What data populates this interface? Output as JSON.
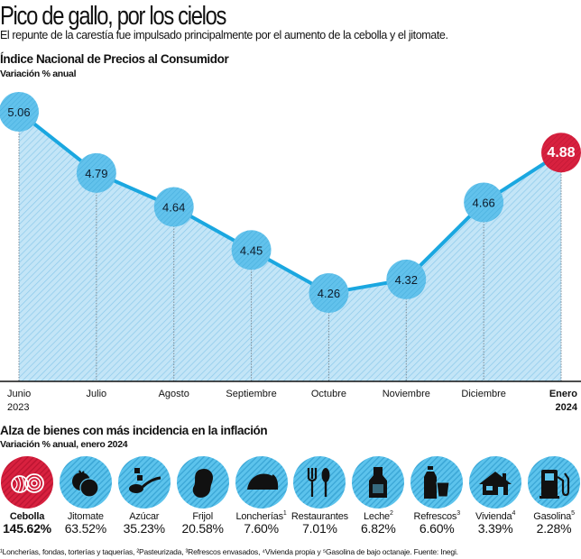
{
  "header": {
    "title": "Pico de gallo, por los cielos",
    "subtitle": "El repunte de la carestía fue impulsado principalmente por el aumento de la cebolla y el jitomate."
  },
  "chart_data": {
    "type": "area",
    "title": "Índice Nacional de Precios al Consumidor",
    "subtitle": "Variación % anual",
    "xlabel": "",
    "ylabel": "Variación % anual",
    "categories": [
      {
        "label": "Junio",
        "year": "2023"
      },
      {
        "label": "Julio",
        "year": ""
      },
      {
        "label": "Agosto",
        "year": ""
      },
      {
        "label": "Septiembre",
        "year": ""
      },
      {
        "label": "Octubre",
        "year": ""
      },
      {
        "label": "Noviembre",
        "year": ""
      },
      {
        "label": "Diciembre",
        "year": ""
      },
      {
        "label": "Enero",
        "year": "2024"
      }
    ],
    "values": [
      5.06,
      4.79,
      4.64,
      4.45,
      4.26,
      4.32,
      4.66,
      4.88
    ],
    "value_labels": [
      "5.06",
      "4.79",
      "4.64",
      "4.45",
      "4.26",
      "4.32",
      "4.66",
      "4.88"
    ],
    "highlight_index": 7,
    "ylim": [
      3.87,
      5.06
    ],
    "grid": false,
    "legend": "none",
    "colors": {
      "line": "#1aa7e0",
      "fill": "#b8e0f5",
      "point": "#5cbfea",
      "highlight": "#d8213f"
    }
  },
  "items_section": {
    "title": "Alza de bienes con más incidencia en la inflación",
    "subtitle": "Variación % anual, enero 2024",
    "items": [
      {
        "name": "Cebolla",
        "sup": "",
        "value": "145.62%",
        "icon": "onion-icon",
        "highlight": true
      },
      {
        "name": "Jitomate",
        "sup": "",
        "value": "63.52%",
        "icon": "tomato-icon",
        "highlight": false
      },
      {
        "name": "Azúcar",
        "sup": "",
        "value": "35.23%",
        "icon": "sugar-spoon-icon",
        "highlight": false
      },
      {
        "name": "Frijol",
        "sup": "",
        "value": "20.58%",
        "icon": "bean-icon",
        "highlight": false
      },
      {
        "name": "Loncherías",
        "sup": "1",
        "value": "7.60%",
        "icon": "taco-icon",
        "highlight": false
      },
      {
        "name": "Restaurantes",
        "sup": "",
        "value": "7.01%",
        "icon": "fork-spoon-icon",
        "highlight": false
      },
      {
        "name": "Leche",
        "sup": "2",
        "value": "6.82%",
        "icon": "milk-bottle-icon",
        "highlight": false
      },
      {
        "name": "Refrescos",
        "sup": "3",
        "value": "6.60%",
        "icon": "soda-icon",
        "highlight": false
      },
      {
        "name": "Vivienda",
        "sup": "4",
        "value": "3.39%",
        "icon": "house-icon",
        "highlight": false
      },
      {
        "name": "Gasolina",
        "sup": "5",
        "value": "2.28%",
        "icon": "gas-pump-icon",
        "highlight": false
      }
    ]
  },
  "footnote": "¹Loncherías, fondas, torterías y taquerías, ²Pasteurizada, ³Refrescos envasados, ⁴Vivienda propia y ⁵Gasolina de bajo octanaje. Fuente: Inegi."
}
